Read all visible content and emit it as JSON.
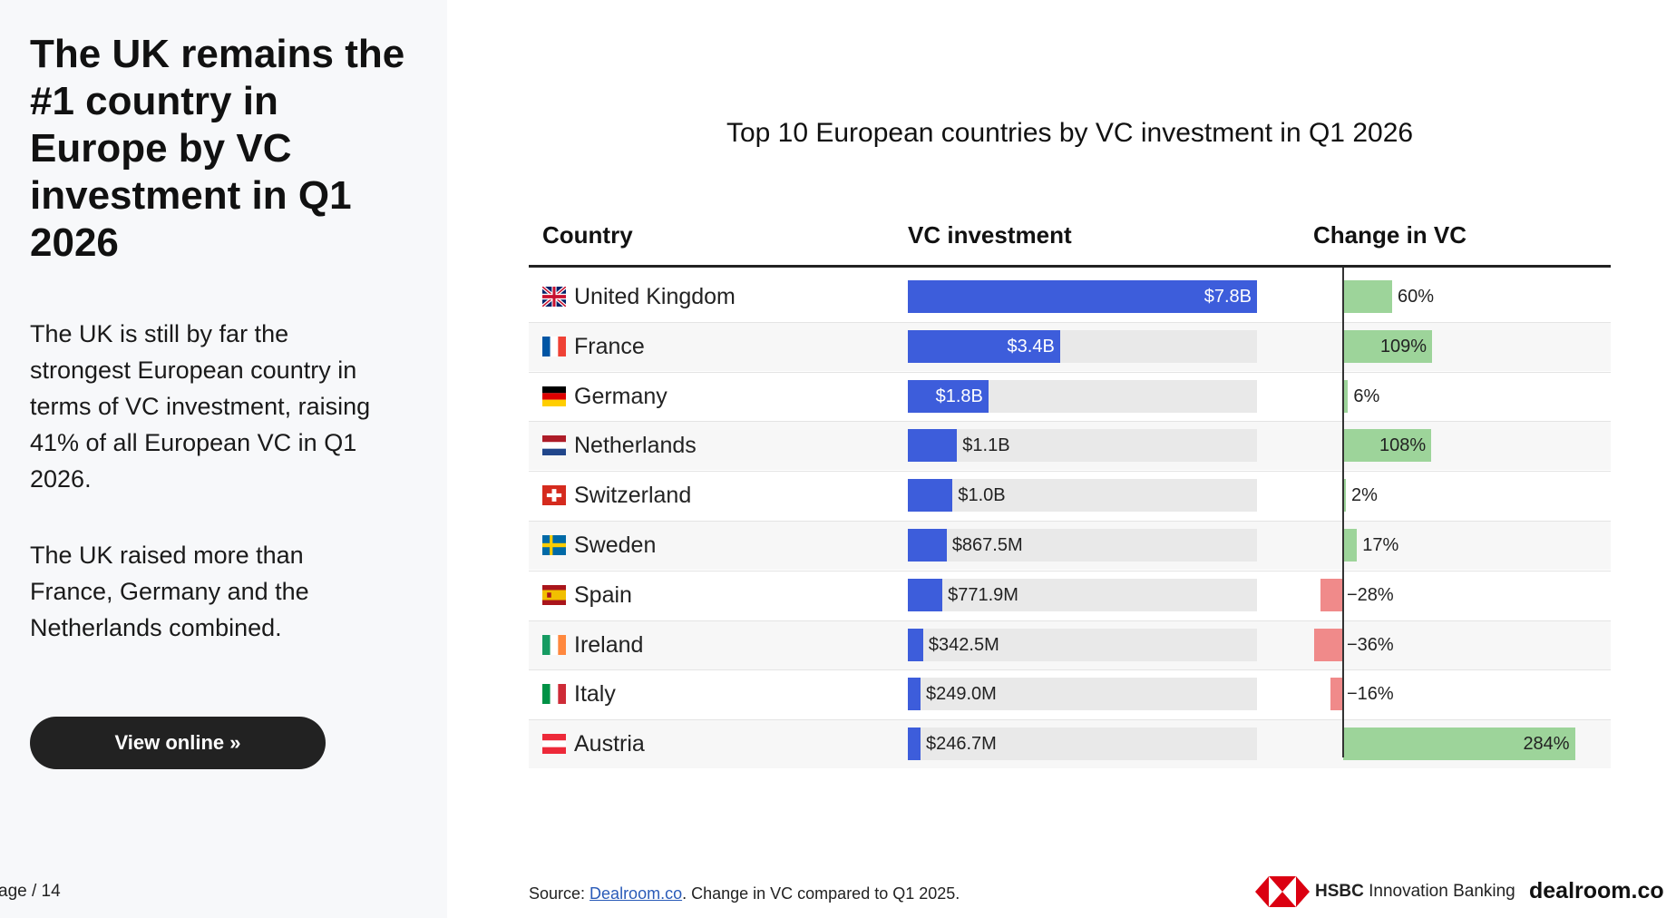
{
  "sidebar": {
    "headline": "The UK remains the #1 country in Europe by VC investment in Q1 2026",
    "paragraph1": "The UK is still by far the strongest European country in terms of VC investment, raising 41% of all European VC in Q1 2026.",
    "paragraph2": "The UK raised more than France, Germany and the Netherlands combined.",
    "button_label": "View online »",
    "page_indicator": "age / 14"
  },
  "colors": {
    "bar": "#3d5ddb",
    "track": "#e9e9e9",
    "positive": "#9dd49a",
    "negative": "#f08a8a"
  },
  "chart_data": {
    "type": "table",
    "title": "Top 10 European countries by VC investment in Q1 2026",
    "columns": [
      "Country",
      "VC investment",
      "Change in VC"
    ],
    "investment_unit": "USD billions",
    "investment_max": 7.8,
    "change_unit": "percent",
    "rows": [
      {
        "country": "United Kingdom",
        "flag": "gb",
        "investment": 7.8,
        "investment_label": "$7.8B",
        "change": 60,
        "change_label": "60%"
      },
      {
        "country": "France",
        "flag": "fr",
        "investment": 3.4,
        "investment_label": "$3.4B",
        "change": 109,
        "change_label": "109%"
      },
      {
        "country": "Germany",
        "flag": "de",
        "investment": 1.8,
        "investment_label": "$1.8B",
        "change": 6,
        "change_label": "6%"
      },
      {
        "country": "Netherlands",
        "flag": "nl",
        "investment": 1.1,
        "investment_label": "$1.1B",
        "change": 108,
        "change_label": "108%"
      },
      {
        "country": "Switzerland",
        "flag": "ch",
        "investment": 1.0,
        "investment_label": "$1.0B",
        "change": 2,
        "change_label": "2%"
      },
      {
        "country": "Sweden",
        "flag": "se",
        "investment": 0.8675,
        "investment_label": "$867.5M",
        "change": 17,
        "change_label": "17%"
      },
      {
        "country": "Spain",
        "flag": "es",
        "investment": 0.7719,
        "investment_label": "$771.9M",
        "change": -28,
        "change_label": "−28%"
      },
      {
        "country": "Ireland",
        "flag": "ie",
        "investment": 0.3425,
        "investment_label": "$342.5M",
        "change": -36,
        "change_label": "−36%"
      },
      {
        "country": "Italy",
        "flag": "it",
        "investment": 0.249,
        "investment_label": "$249.0M",
        "change": -16,
        "change_label": "−16%"
      },
      {
        "country": "Austria",
        "flag": "at",
        "investment": 0.2467,
        "investment_label": "$246.7M",
        "change": 284,
        "change_label": "284%"
      }
    ]
  },
  "footer": {
    "source_prefix": "Source: ",
    "source_link": "Dealroom.co",
    "source_suffix": ". Change in VC compared to Q1 2025.",
    "hsbc_brand": "HSBC",
    "hsbc_suffix": " Innovation Banking",
    "dealroom_logo": "dealroom.co"
  }
}
